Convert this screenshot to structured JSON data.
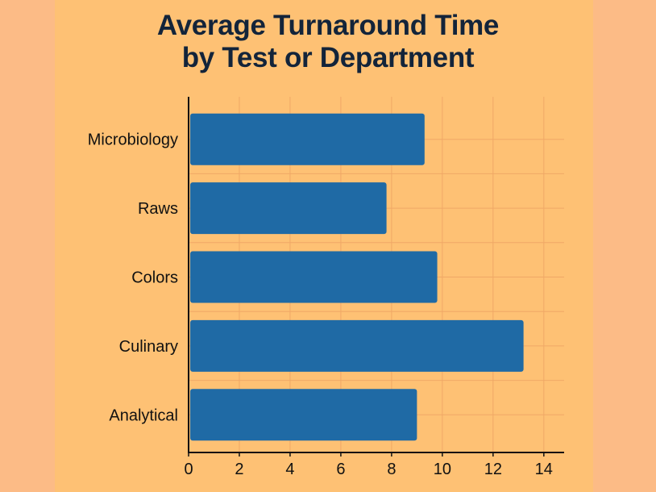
{
  "colors": {
    "page_background": "#fcbb86",
    "plot_background": "#fec174",
    "bar": "#1f6aa5",
    "grid": "#f0a866",
    "axis": "#111111",
    "title": "#13243a"
  },
  "chart_data": {
    "type": "bar",
    "orientation": "horizontal",
    "title": "Average Turnaround Time by Test or Department",
    "title_lines": [
      "Average Turnaround Time",
      "by Test or Department"
    ],
    "xlabel": "",
    "ylabel": "",
    "categories": [
      "Microbiology",
      "Raws",
      "Colors",
      "Culinary",
      "Analytical"
    ],
    "values": [
      9.3,
      7.8,
      9.8,
      13.2,
      9.0
    ],
    "xlim": [
      0,
      14.8
    ],
    "xticks": [
      0,
      2,
      4,
      6,
      8,
      10,
      12,
      14
    ],
    "grid": true,
    "legend": "none"
  }
}
